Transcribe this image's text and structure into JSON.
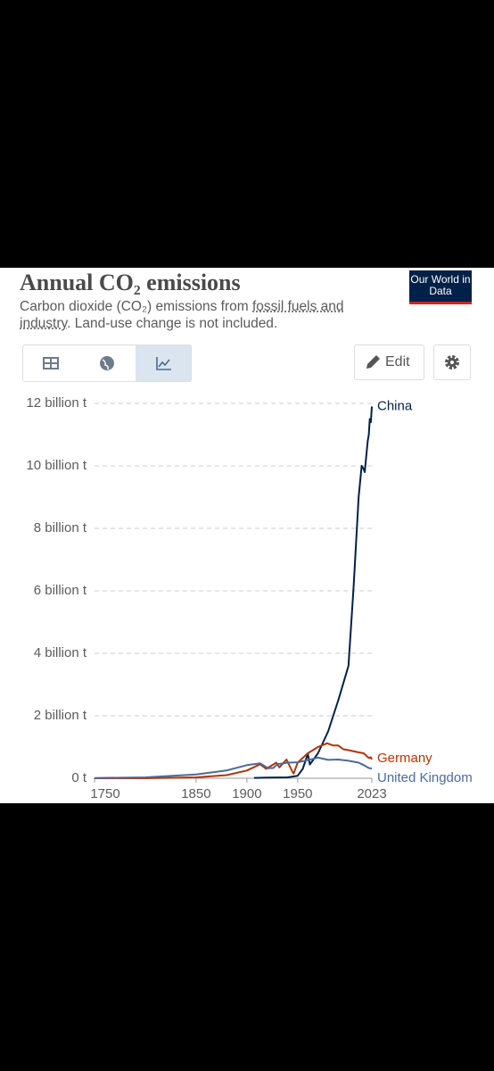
{
  "header": {
    "title": "Annual CO₂ emissions",
    "subtitle_start": "Carbon dioxide (CO₂) emissions from ",
    "subtitle_link": "fossil fuels and industry",
    "subtitle_end": ". Land-use change is not included.",
    "logo": "Our World in Data"
  },
  "toolbar": {
    "edit": "Edit"
  },
  "chart_data": {
    "type": "line",
    "xlim": [
      1750,
      2023
    ],
    "xticks": [
      1750,
      1850,
      1900,
      1950,
      2023
    ],
    "ylim": [
      0,
      12000000000
    ],
    "yticks": [
      {
        "value": 0,
        "label": "0 t"
      },
      {
        "value": 2000000000,
        "label": "2 billion t"
      },
      {
        "value": 4000000000,
        "label": "4 billion t"
      },
      {
        "value": 6000000000,
        "label": "6 billion t"
      },
      {
        "value": 8000000000,
        "label": "8 billion t"
      },
      {
        "value": 10000000000,
        "label": "10 billion t"
      },
      {
        "value": 12000000000,
        "label": "12 billion t"
      }
    ],
    "grid": true,
    "series": [
      {
        "name": "China",
        "color": "#002147",
        "x": [
          1907,
          1920,
          1940,
          1950,
          1955,
          1960,
          1962,
          1970,
          1980,
          1990,
          2000,
          2005,
          2010,
          2013,
          2015,
          2016,
          2019,
          2020,
          2021,
          2022,
          2023
        ],
        "values": [
          10000000,
          20000000,
          30000000,
          80000000,
          300000000,
          780000000,
          440000000,
          800000000,
          1500000000,
          2500000000,
          3600000000,
          6100000000,
          9000000000,
          10000000000,
          9900000000,
          9800000000,
          10800000000,
          11000000000,
          11500000000,
          11400000000,
          11900000000
        ]
      },
      {
        "name": "Germany",
        "color": "#b13507",
        "x": [
          1750,
          1800,
          1850,
          1880,
          1900,
          1913,
          1919,
          1929,
          1932,
          1939,
          1945,
          1946,
          1950,
          1960,
          1970,
          1979,
          1985,
          1990,
          1995,
          2000,
          2010,
          2015,
          2020,
          2022,
          2023
        ],
        "values": [
          0,
          1000000,
          30000000,
          100000000,
          250000000,
          450000000,
          300000000,
          500000000,
          350000000,
          600000000,
          200000000,
          150000000,
          500000000,
          800000000,
          1000000000,
          1120000000,
          1050000000,
          1050000000,
          930000000,
          900000000,
          830000000,
          800000000,
          650000000,
          670000000,
          600000000
        ]
      },
      {
        "name": "United Kingdom",
        "color": "#4c6a9c",
        "x": [
          1750,
          1800,
          1850,
          1880,
          1900,
          1913,
          1921,
          1926,
          1930,
          1940,
          1950,
          1960,
          1970,
          1980,
          1990,
          2000,
          2010,
          2015,
          2020,
          2023
        ],
        "values": [
          9000000,
          30000000,
          120000000,
          250000000,
          420000000,
          480000000,
          320000000,
          330000000,
          450000000,
          500000000,
          510000000,
          580000000,
          660000000,
          590000000,
          600000000,
          560000000,
          500000000,
          420000000,
          330000000,
          310000000
        ]
      }
    ]
  }
}
